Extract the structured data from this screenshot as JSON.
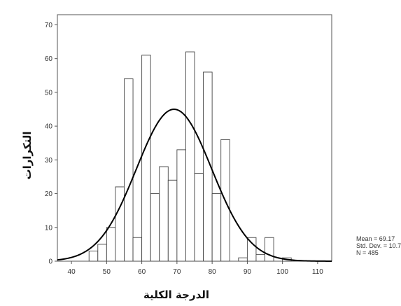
{
  "chart_data": {
    "type": "bar",
    "subtype": "histogram",
    "xlabel": "الدرجة الكلية",
    "ylabel": "التكرارات",
    "xlim": [
      36,
      114
    ],
    "ylim": [
      0,
      73
    ],
    "x_ticks": [
      40,
      50,
      60,
      70,
      80,
      90,
      100,
      110
    ],
    "y_ticks": [
      0,
      10,
      20,
      30,
      40,
      50,
      60,
      70
    ],
    "bin_width": 2.5,
    "bins": [
      {
        "x0": 45.0,
        "x1": 47.5,
        "count": 3
      },
      {
        "x0": 47.5,
        "x1": 50.0,
        "count": 5
      },
      {
        "x0": 50.0,
        "x1": 52.5,
        "count": 10
      },
      {
        "x0": 52.5,
        "x1": 55.0,
        "count": 22
      },
      {
        "x0": 55.0,
        "x1": 57.5,
        "count": 54
      },
      {
        "x0": 57.5,
        "x1": 60.0,
        "count": 7
      },
      {
        "x0": 60.0,
        "x1": 62.5,
        "count": 61
      },
      {
        "x0": 62.5,
        "x1": 65.0,
        "count": 20
      },
      {
        "x0": 65.0,
        "x1": 67.5,
        "count": 28
      },
      {
        "x0": 67.5,
        "x1": 70.0,
        "count": 24
      },
      {
        "x0": 70.0,
        "x1": 72.5,
        "count": 33
      },
      {
        "x0": 72.5,
        "x1": 75.0,
        "count": 62
      },
      {
        "x0": 75.0,
        "x1": 77.5,
        "count": 26
      },
      {
        "x0": 77.5,
        "x1": 80.0,
        "count": 56
      },
      {
        "x0": 80.0,
        "x1": 82.5,
        "count": 20
      },
      {
        "x0": 82.5,
        "x1": 85.0,
        "count": 36
      },
      {
        "x0": 87.5,
        "x1": 90.0,
        "count": 1
      },
      {
        "x0": 90.0,
        "x1": 92.5,
        "count": 7
      },
      {
        "x0": 92.5,
        "x1": 95.0,
        "count": 2
      },
      {
        "x0": 95.0,
        "x1": 97.5,
        "count": 7
      },
      {
        "x0": 100.0,
        "x1": 102.5,
        "count": 1
      }
    ],
    "normal_curve": {
      "mean": 69.17,
      "std_dev": 10.72,
      "peak": 45
    },
    "stats": {
      "mean_text": "Mean = 69.17",
      "std_text": "Std. Dev. = 10.72",
      "n_text": "N = 485"
    },
    "grid": false,
    "colors": {
      "bar_fill": "#ffffff",
      "bar_stroke": "#444444",
      "curve": "#000000",
      "frame": "#555555"
    }
  }
}
